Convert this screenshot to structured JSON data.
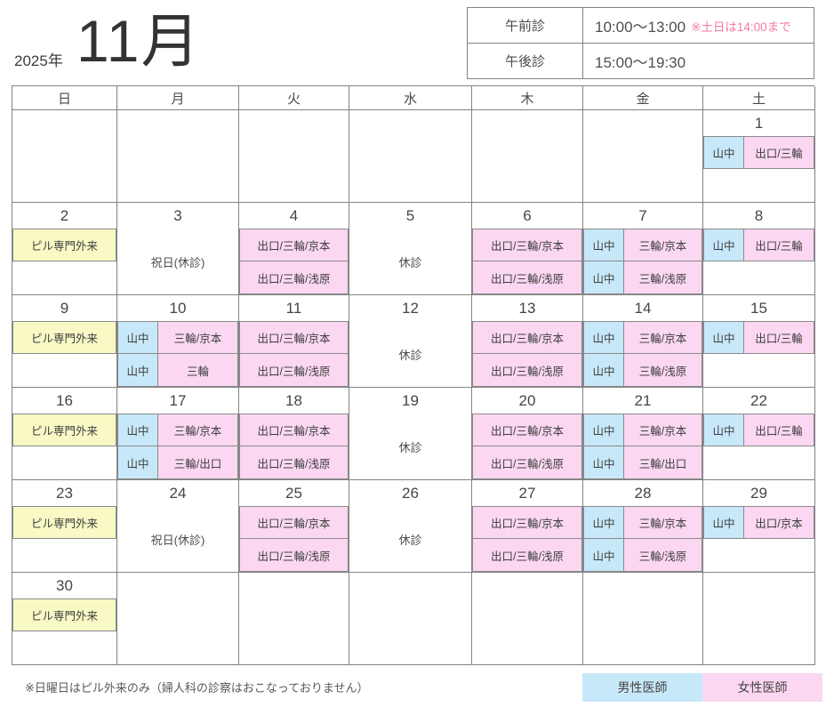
{
  "title": {
    "year": "2025年",
    "month": "11月"
  },
  "hours": {
    "rows": [
      {
        "label": "午前診",
        "time": "10:00～13:00",
        "note": "※土日は14:00まで"
      },
      {
        "label": "午後診",
        "time": "15:00～19:30",
        "note": ""
      }
    ]
  },
  "weekdays": [
    "日",
    "月",
    "火",
    "水",
    "木",
    "金",
    "土"
  ],
  "labels": {
    "pill": "ピル専門外来",
    "holiday": "祝日(休診)",
    "closed": "休診"
  },
  "colors": {
    "male": "#c7e8f9",
    "female": "#fbd7f1",
    "pill": "#f9f9c6",
    "border": "#838383",
    "note_pink": "#f47ba6"
  },
  "weeks": [
    [
      {},
      {},
      {},
      {},
      {},
      {},
      {
        "date": "1",
        "am": {
          "m": "山中",
          "f": "出口/三輪"
        },
        "pm": null
      }
    ],
    [
      {
        "date": "2",
        "pill": true
      },
      {
        "date": "3",
        "holiday": true
      },
      {
        "date": "4",
        "am": {
          "f": "出口/三輪/京本"
        },
        "pm": {
          "f": "出口/三輪/浅原"
        }
      },
      {
        "date": "5",
        "closed": true
      },
      {
        "date": "6",
        "am": {
          "f": "出口/三輪/京本"
        },
        "pm": {
          "f": "出口/三輪/浅原"
        }
      },
      {
        "date": "7",
        "am": {
          "m": "山中",
          "f": "三輪/京本"
        },
        "pm": {
          "m": "山中",
          "f": "三輪/浅原"
        }
      },
      {
        "date": "8",
        "am": {
          "m": "山中",
          "f": "出口/三輪"
        },
        "pm": null
      }
    ],
    [
      {
        "date": "9",
        "pill": true
      },
      {
        "date": "10",
        "am": {
          "m": "山中",
          "f": "三輪/京本"
        },
        "pm": {
          "m": "山中",
          "f": "三輪"
        }
      },
      {
        "date": "11",
        "am": {
          "f": "出口/三輪/京本"
        },
        "pm": {
          "f": "出口/三輪/浅原"
        }
      },
      {
        "date": "12",
        "closed": true
      },
      {
        "date": "13",
        "am": {
          "f": "出口/三輪/京本"
        },
        "pm": {
          "f": "出口/三輪/浅原"
        }
      },
      {
        "date": "14",
        "am": {
          "m": "山中",
          "f": "三輪/京本"
        },
        "pm": {
          "m": "山中",
          "f": "三輪/浅原"
        }
      },
      {
        "date": "15",
        "am": {
          "m": "山中",
          "f": "出口/三輪"
        },
        "pm": null
      }
    ],
    [
      {
        "date": "16",
        "pill": true
      },
      {
        "date": "17",
        "am": {
          "m": "山中",
          "f": "三輪/京本"
        },
        "pm": {
          "m": "山中",
          "f": "三輪/出口"
        }
      },
      {
        "date": "18",
        "am": {
          "f": "出口/三輪/京本"
        },
        "pm": {
          "f": "出口/三輪/浅原"
        }
      },
      {
        "date": "19",
        "closed": true
      },
      {
        "date": "20",
        "am": {
          "f": "出口/三輪/京本"
        },
        "pm": {
          "f": "出口/三輪/浅原"
        }
      },
      {
        "date": "21",
        "am": {
          "m": "山中",
          "f": "三輪/京本"
        },
        "pm": {
          "m": "山中",
          "f": "三輪/出口"
        }
      },
      {
        "date": "22",
        "am": {
          "m": "山中",
          "f": "出口/三輪"
        },
        "pm": null
      }
    ],
    [
      {
        "date": "23",
        "pill": true
      },
      {
        "date": "24",
        "holiday": true
      },
      {
        "date": "25",
        "am": {
          "f": "出口/三輪/京本"
        },
        "pm": {
          "f": "出口/三輪/浅原"
        }
      },
      {
        "date": "26",
        "closed": true
      },
      {
        "date": "27",
        "am": {
          "f": "出口/三輪/京本"
        },
        "pm": {
          "f": "出口/三輪/浅原"
        }
      },
      {
        "date": "28",
        "am": {
          "m": "山中",
          "f": "三輪/京本"
        },
        "pm": {
          "m": "山中",
          "f": "三輪/浅原"
        }
      },
      {
        "date": "29",
        "am": {
          "m": "山中",
          "f": "出口/京本"
        },
        "pm": null
      }
    ],
    [
      {
        "date": "30",
        "pill": true
      },
      {},
      {},
      {},
      {},
      {},
      {}
    ]
  ],
  "footnote": "※日曜日はピル外来のみ（婦人科の診察はおこなっておりません）",
  "legend": [
    {
      "label": "男性医師",
      "type": "male"
    },
    {
      "label": "女性医師",
      "type": "female"
    }
  ]
}
